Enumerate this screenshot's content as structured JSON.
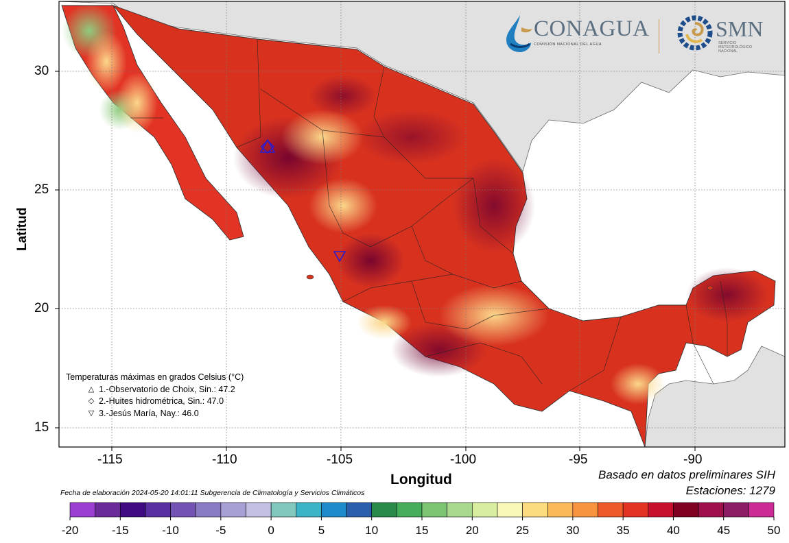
{
  "map": {
    "x_axis": {
      "label": "Longitud",
      "ticks": [
        "-115",
        "-110",
        "-105",
        "-100",
        "-95",
        "-90"
      ]
    },
    "y_axis": {
      "label": "Latitud",
      "ticks": [
        "30",
        "25",
        "20",
        "15"
      ]
    },
    "legend": {
      "title": "Temperaturas máximas en grados Celsius (°C)",
      "items": [
        {
          "symbol": "△",
          "text": "1.-Observatorio de Choix, Sin.: 47.2"
        },
        {
          "symbol": "◇",
          "text": "2.-Huites hidrométrica, Sin.: 47.0"
        },
        {
          "symbol": "▽",
          "text": "3.-Jesús María, Nay.: 46.0"
        }
      ]
    },
    "notes": {
      "basis": "Basado en datos preliminares SIH",
      "stations": "Estaciones:  1279"
    },
    "fecha": "Fecha de elaboración 2024-05-20 14:01:11 Subgerencia de Climatología y Servicios Climáticos",
    "logos": {
      "conagua": "CONAGUA",
      "conagua_sub": "COMISIÓN NACIONAL DEL AGUA",
      "smn": "SMN",
      "smn_sub": [
        "SERVICIO",
        "METEOROLÓGICO",
        "NACIONAL"
      ]
    }
  },
  "colorbar": {
    "labels": [
      "-20",
      "-15",
      "-10",
      "-5",
      "0",
      "5",
      "10",
      "15",
      "20",
      "25",
      "30",
      "35",
      "40",
      "45",
      "50"
    ],
    "colors": [
      "#9b3ed1",
      "#6a2a9a",
      "#3e0b82",
      "#5a2fa0",
      "#7354b3",
      "#8b7bc6",
      "#a7a0d4",
      "#c2c0e3",
      "#82c8bc",
      "#3cb4c8",
      "#1e8ccc",
      "#2b5fae",
      "#2a8a47",
      "#46ad5a",
      "#7cc472",
      "#a9d98e",
      "#d9eda1",
      "#f9f7b7",
      "#fddc7f",
      "#fcb95a",
      "#f89340",
      "#f05a2a",
      "#e23325",
      "#c8102e",
      "#7f0020",
      "#a0104a",
      "#8c1d64",
      "#cc2b96"
    ]
  }
}
